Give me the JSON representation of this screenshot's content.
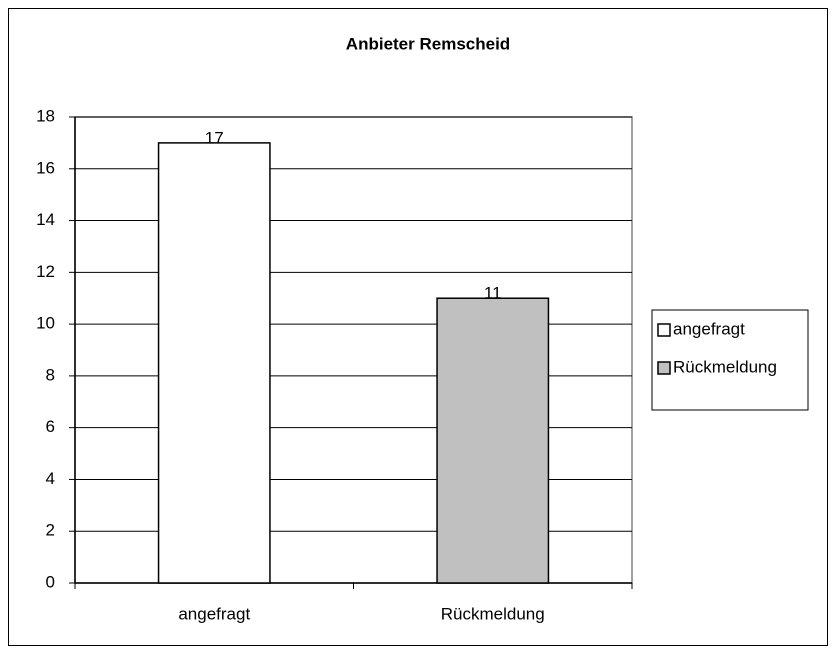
{
  "chart_data": {
    "type": "bar",
    "title": "Anbieter Remscheid",
    "categories": [
      "angefragt",
      "Rückmeldung"
    ],
    "values": [
      17,
      11
    ],
    "colors": [
      "#ffffff",
      "#c0c0c0"
    ],
    "ylim": [
      0,
      18
    ],
    "yticks": [
      0,
      2,
      4,
      6,
      8,
      10,
      12,
      14,
      16,
      18
    ],
    "grid": true,
    "legend": "right"
  }
}
